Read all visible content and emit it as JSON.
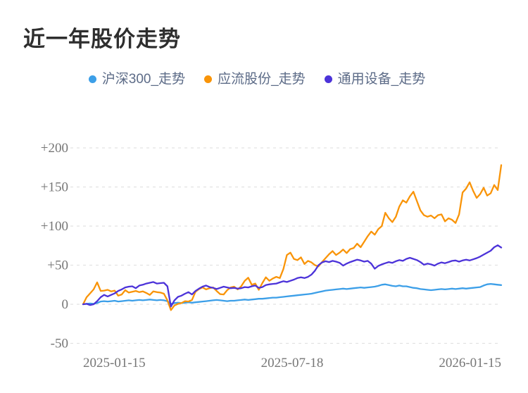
{
  "chart_data": {
    "type": "line",
    "title": "近一年股价走势",
    "legend_position": "top-center",
    "grid": "horizontal-dashed",
    "x_tick_labels": [
      "2025-01-15",
      "2025-07-18",
      "2026-01-15"
    ],
    "ylim": [
      -50,
      200
    ],
    "yticks": [
      {
        "value": 200,
        "label": "+200"
      },
      {
        "value": 150,
        "label": "+150"
      },
      {
        "value": 100,
        "label": "+100"
      },
      {
        "value": 50,
        "label": "+50"
      },
      {
        "value": 0,
        "label": "0"
      },
      {
        "value": -50,
        "label": "-50"
      }
    ],
    "colors": {
      "grid_line": "#e2e2e2",
      "tick_text": "#767676",
      "title_text": "#2e2e2e",
      "legend_text": "#5c6b87"
    },
    "series": [
      {
        "name": "沪深300_走势",
        "color": "#3C9FE8",
        "values": [
          0,
          0.5,
          1,
          0.5,
          1.5,
          3.5,
          4,
          3.5,
          4,
          4.5,
          3.5,
          4,
          4.5,
          5,
          4.5,
          5,
          5.5,
          5,
          5.5,
          6,
          5.5,
          5,
          5.5,
          5,
          4,
          0.5,
          1.5,
          2,
          1.5,
          2,
          2.5,
          2,
          2.5,
          3,
          3.5,
          4,
          4.5,
          5,
          5.5,
          5,
          4.5,
          4,
          4.5,
          4.5,
          5,
          5.5,
          6,
          5.5,
          6,
          6.5,
          7,
          7,
          7.5,
          8,
          8.5,
          8.5,
          9,
          9.5,
          10,
          10.5,
          11,
          11.5,
          12,
          12.5,
          13,
          13.5,
          14.5,
          15.5,
          16.5,
          17.5,
          18,
          18.5,
          19,
          19.5,
          20,
          19.5,
          20,
          20.5,
          21,
          21.5,
          21,
          21.5,
          22,
          22.5,
          23.5,
          25,
          25.5,
          24.5,
          23.5,
          23,
          24,
          23,
          23,
          22,
          21,
          20.5,
          19.5,
          19,
          18.5,
          18,
          18.5,
          19,
          19.5,
          19,
          19.5,
          20,
          19.5,
          20,
          20.5,
          20,
          20.5,
          21,
          21.5,
          22,
          24,
          25.5,
          26,
          25.5,
          25,
          24.5
        ]
      },
      {
        "name": "应流股份_走势",
        "color": "#F99408",
        "values": [
          0,
          9,
          14,
          19,
          28,
          17,
          17.5,
          18.5,
          16.5,
          17.5,
          11,
          12.5,
          18,
          15,
          16,
          17,
          15.5,
          16.5,
          14.5,
          12,
          16.5,
          15.5,
          15,
          13.5,
          5,
          -7.5,
          -1.5,
          0.5,
          1.5,
          4,
          3.5,
          5.5,
          16,
          19.5,
          21.5,
          19,
          20.5,
          21.5,
          17,
          13,
          12.5,
          18,
          21.5,
          22.5,
          19,
          23,
          30,
          34,
          25,
          26.5,
          18.5,
          27,
          34.5,
          30,
          33,
          35,
          33.5,
          45,
          63,
          66,
          58,
          56.5,
          60,
          51.5,
          55.5,
          53.5,
          50,
          48.5,
          54,
          59,
          64,
          68,
          63,
          66,
          70,
          65.5,
          70.5,
          72,
          77.5,
          73,
          80,
          87,
          93,
          89,
          96,
          100,
          117,
          110,
          105,
          112,
          125,
          133,
          130,
          138,
          144,
          132,
          120,
          114,
          112,
          113.5,
          110,
          114,
          115,
          106,
          110,
          108,
          104,
          115,
          143,
          148,
          156,
          145,
          136,
          141,
          149,
          139,
          142,
          152.5,
          146,
          178
        ]
      },
      {
        "name": "通用设备_走势",
        "color": "#4C33D9",
        "values": [
          0,
          0.5,
          -1,
          0,
          4,
          9,
          12,
          10,
          12,
          14,
          17,
          19,
          21.5,
          22.5,
          23,
          20.5,
          24,
          25,
          26.5,
          27.5,
          28.5,
          26.5,
          27,
          27.5,
          23,
          -3,
          5,
          9.5,
          11,
          13.5,
          15.5,
          12.5,
          17,
          20,
          22.5,
          24,
          22,
          21,
          19.5,
          21,
          22.5,
          21.5,
          20.5,
          21,
          20,
          20.5,
          22,
          21.5,
          23,
          24,
          21,
          22,
          24.5,
          25.5,
          26,
          26.5,
          28,
          29.5,
          28.5,
          30,
          31.5,
          33.5,
          34.5,
          33.5,
          35,
          38,
          43,
          50,
          53.5,
          55,
          54,
          55.5,
          54.5,
          53,
          49.5,
          52,
          54,
          55.5,
          57,
          56,
          54.5,
          55.5,
          52,
          45.5,
          49,
          51,
          52.5,
          54,
          53,
          55,
          56.5,
          55.5,
          58,
          59.5,
          58,
          56.5,
          54,
          50.5,
          52,
          51,
          49.5,
          52,
          53.5,
          52.5,
          54,
          55.5,
          56,
          54.5,
          56,
          57,
          56,
          57.5,
          59,
          61,
          63.5,
          66,
          68.5,
          73,
          75.5,
          72.5
        ]
      }
    ]
  }
}
